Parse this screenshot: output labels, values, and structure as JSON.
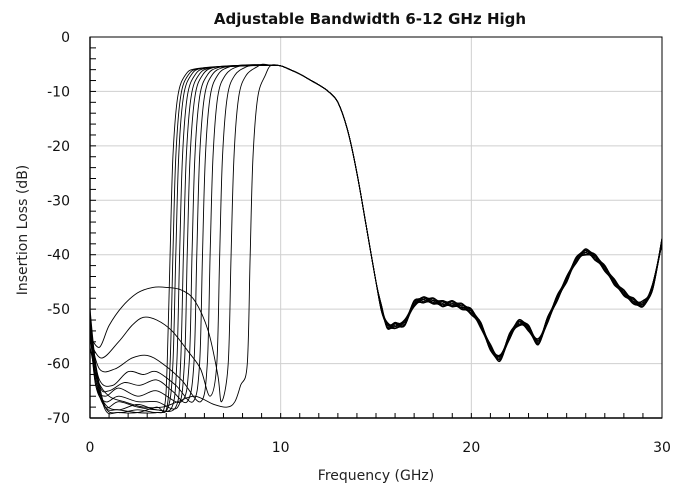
{
  "chart_data": {
    "type": "line",
    "title": "Adjustable Bandwidth 6-12 GHz High",
    "xlabel": "Frequency (GHz)",
    "ylabel": "Insertion Loss (dB)",
    "xlim": [
      0,
      30
    ],
    "ylim": [
      -70,
      0
    ],
    "x_ticks": [
      0,
      10,
      20,
      30
    ],
    "y_ticks": [
      0,
      -10,
      -20,
      -30,
      -40,
      -50,
      -60,
      -70
    ],
    "grid": true,
    "legend": "none",
    "stroke_color": "#000000",
    "grid_color": "#cfcfcf",
    "passband_template": {
      "x": [
        9.5,
        10.0,
        10.5,
        11.0,
        11.5,
        12.0,
        12.5,
        13.0,
        13.5,
        14.0,
        14.5,
        15.0,
        15.3,
        15.6,
        16.0,
        16.5,
        17.0,
        17.5,
        18.0,
        18.5,
        19.0,
        19.5,
        20.0,
        20.5,
        21.0,
        21.5,
        22.0,
        22.5,
        23.0,
        23.5,
        24.0,
        24.5,
        25.0,
        25.5,
        26.0,
        26.5,
        27.0,
        27.5,
        28.0,
        28.5,
        29.0,
        29.5,
        30.0
      ],
      "y": [
        -5.2,
        -5.3,
        -6.0,
        -6.8,
        -7.8,
        -8.8,
        -10.0,
        -12.0,
        -17.0,
        -25.0,
        -35.0,
        -45.0,
        -50.0,
        -53.0,
        -53.0,
        -52.5,
        -49.0,
        -48.3,
        -48.5,
        -49.0,
        -49.0,
        -49.5,
        -50.5,
        -53.0,
        -57.0,
        -59.0,
        -55.0,
        -52.5,
        -53.5,
        -56.0,
        -52.0,
        -48.0,
        -44.5,
        -41.0,
        -39.5,
        -40.5,
        -42.5,
        -45.0,
        -47.0,
        -48.5,
        -49.0,
        -46.0,
        -37.5
      ]
    },
    "series": [
      {
        "edge": 4.2,
        "top": -5.4,
        "stop": [
          [
            0.0,
            -50.0
          ],
          [
            0.3,
            -60.0
          ],
          [
            0.8,
            -68.0
          ],
          [
            1.5,
            -69.0
          ],
          [
            2.5,
            -68.5
          ],
          [
            3.5,
            -69.0
          ],
          [
            3.9,
            -68.0
          ]
        ]
      },
      {
        "edge": 4.35,
        "top": -5.4,
        "stop": [
          [
            0.0,
            -51.0
          ],
          [
            0.3,
            -61.0
          ],
          [
            0.8,
            -68.5
          ],
          [
            1.5,
            -69.0
          ],
          [
            2.5,
            -69.0
          ],
          [
            3.5,
            -68.0
          ],
          [
            4.0,
            -68.5
          ]
        ]
      },
      {
        "edge": 4.5,
        "top": -5.3,
        "stop": [
          [
            0.0,
            -52.0
          ],
          [
            0.3,
            -62.0
          ],
          [
            0.8,
            -68.0
          ],
          [
            1.5,
            -68.5
          ],
          [
            2.5,
            -69.0
          ],
          [
            3.5,
            -69.0
          ],
          [
            4.1,
            -68.0
          ]
        ]
      },
      {
        "edge": 4.7,
        "top": -5.3,
        "stop": [
          [
            0.0,
            -52.0
          ],
          [
            0.3,
            -63.0
          ],
          [
            0.8,
            -68.0
          ],
          [
            1.5,
            -67.0
          ],
          [
            2.5,
            -68.0
          ],
          [
            3.5,
            -68.5
          ],
          [
            4.3,
            -68.0
          ]
        ]
      },
      {
        "edge": 4.9,
        "top": -5.3,
        "stop": [
          [
            0.0,
            -53.0
          ],
          [
            0.3,
            -63.0
          ],
          [
            0.8,
            -67.5
          ],
          [
            1.5,
            -68.5
          ],
          [
            2.5,
            -67.5
          ],
          [
            3.5,
            -68.5
          ],
          [
            4.5,
            -68.0
          ]
        ]
      },
      {
        "edge": 5.1,
        "top": -5.2,
        "stop": [
          [
            0.0,
            -53.0
          ],
          [
            0.3,
            -64.0
          ],
          [
            0.8,
            -67.0
          ],
          [
            1.5,
            -66.0
          ],
          [
            2.5,
            -67.0
          ],
          [
            3.5,
            -67.0
          ],
          [
            4.6,
            -68.0
          ]
        ]
      },
      {
        "edge": 5.35,
        "top": -5.2,
        "stop": [
          [
            0.0,
            -54.0
          ],
          [
            0.3,
            -64.0
          ],
          [
            0.8,
            -66.0
          ],
          [
            1.5,
            -64.5
          ],
          [
            2.5,
            -66.0
          ],
          [
            3.5,
            -65.0
          ],
          [
            4.8,
            -67.0
          ]
        ]
      },
      {
        "edge": 5.6,
        "top": -5.2,
        "stop": [
          [
            0.0,
            -54.0
          ],
          [
            0.5,
            -64.0
          ],
          [
            1.0,
            -65.0
          ],
          [
            1.8,
            -63.5
          ],
          [
            2.6,
            -64.0
          ],
          [
            3.5,
            -63.0
          ],
          [
            4.3,
            -65.0
          ],
          [
            5.1,
            -67.0
          ]
        ]
      },
      {
        "edge": 5.9,
        "top": -5.1,
        "stop": [
          [
            0.0,
            -55.0
          ],
          [
            0.5,
            -63.0
          ],
          [
            1.2,
            -64.0
          ],
          [
            2.0,
            -61.5
          ],
          [
            2.8,
            -62.0
          ],
          [
            3.5,
            -61.5
          ],
          [
            4.5,
            -64.0
          ],
          [
            5.4,
            -67.0
          ]
        ]
      },
      {
        "edge": 6.3,
        "top": -5.1,
        "stop": [
          [
            0.0,
            -55.0
          ],
          [
            0.5,
            -61.0
          ],
          [
            1.3,
            -61.0
          ],
          [
            2.2,
            -59.0
          ],
          [
            3.0,
            -58.5
          ],
          [
            3.8,
            -60.0
          ],
          [
            4.8,
            -63.0
          ],
          [
            5.8,
            -67.0
          ]
        ]
      },
      {
        "edge": 6.8,
        "top": -5.1,
        "stop": [
          [
            0.0,
            -56.0
          ],
          [
            0.6,
            -59.0
          ],
          [
            1.5,
            -56.0
          ],
          [
            2.2,
            -53.0
          ],
          [
            2.8,
            -51.5
          ],
          [
            3.5,
            -52.0
          ],
          [
            4.3,
            -54.0
          ],
          [
            5.2,
            -58.0
          ],
          [
            5.8,
            -61.0
          ],
          [
            6.3,
            -66.0
          ]
        ]
      },
      {
        "edge": 7.4,
        "top": -5.0,
        "stop": [
          [
            0.0,
            -55.0
          ],
          [
            0.5,
            -57.0
          ],
          [
            1.0,
            -53.0
          ],
          [
            1.7,
            -49.5
          ],
          [
            2.5,
            -47.0
          ],
          [
            3.3,
            -46.0
          ],
          [
            4.0,
            -46.0
          ],
          [
            4.8,
            -46.5
          ],
          [
            5.5,
            -48.5
          ],
          [
            6.2,
            -54.0
          ],
          [
            6.7,
            -62.0
          ],
          [
            6.9,
            -67.0
          ]
        ]
      },
      {
        "edge": 8.4,
        "top": -5.0,
        "stop": [
          [
            0.0,
            -57.0
          ],
          [
            0.4,
            -63.0
          ],
          [
            1.0,
            -66.0
          ],
          [
            1.8,
            -67.0
          ],
          [
            2.8,
            -68.0
          ],
          [
            3.8,
            -68.0
          ],
          [
            4.6,
            -67.0
          ],
          [
            5.5,
            -66.0
          ],
          [
            6.5,
            -67.5
          ],
          [
            7.2,
            -68.0
          ],
          [
            7.6,
            -67.0
          ],
          [
            7.9,
            -64.0
          ]
        ]
      }
    ]
  }
}
